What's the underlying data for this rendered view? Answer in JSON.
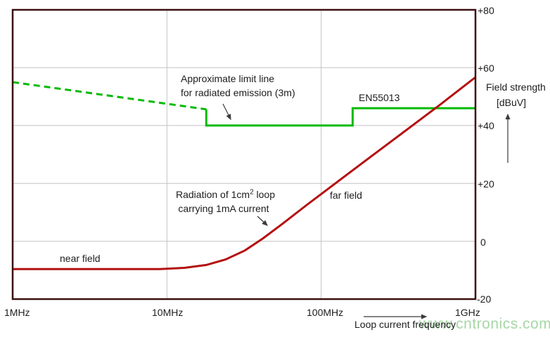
{
  "watermark": {
    "text": "www.cntronics.com",
    "color": "#a6d7a6"
  },
  "annotations": {
    "limit_line_label": {
      "line1": "Approximate limit line",
      "line2": "for radiated emission (3m)"
    },
    "en55013_label": "EN55013",
    "radiation_label": {
      "pre": "Radiation of 1cm",
      "sup": "2",
      "post": " loop",
      "line2": "carrying 1mA current"
    },
    "far_field_label": "far field",
    "near_field_label": "near field",
    "y_axis_title_line1": "Field strength",
    "y_axis_title_line2": "[dBuV]",
    "x_axis_title": "Loop current frequency"
  },
  "colors": {
    "limit_green": "#00bb00",
    "curve_red": "#b40f0f",
    "plot_border": "#3a0f0f",
    "gridline": "#c4c4c4",
    "arrow": "#3a3a3a",
    "text": "#1c1c1c"
  },
  "chart_data": {
    "type": "line",
    "title": "",
    "xlabel": "Loop current frequency",
    "ylabel": "Field strength [dBuV]",
    "x_axis": {
      "scale": "log",
      "min": 1000000.0,
      "max": 1000000000.0,
      "tick_labels": [
        "1MHz",
        "10MHz",
        "100MHz",
        "1GHz"
      ],
      "tick_values": [
        1000000.0,
        10000000.0,
        100000000.0,
        1000000000.0
      ]
    },
    "y_axis": {
      "min": -20,
      "max": 80,
      "tick_labels": [
        "+80",
        "+60",
        "+40",
        "+20",
        "0",
        "-20"
      ],
      "tick_values": [
        80,
        60,
        40,
        20,
        0,
        -20
      ]
    },
    "grid": {
      "x_values": [
        10000000.0,
        100000000.0
      ],
      "y_values": [
        60,
        40,
        20,
        0
      ]
    },
    "series": [
      {
        "key": "limit-extrapolated-dashed",
        "name": "Approximate limit line extrapolated below 30MHz (dashed)",
        "color": "#00bb00",
        "style": "dashed",
        "width": 3,
        "points": [
          [
            1000000.0,
            55
          ],
          [
            18000000.0,
            45.6
          ]
        ]
      },
      {
        "key": "limit-en55013-solid",
        "name": "EN55013 approximate limit line for radiated emission (3m)",
        "color": "#00bb00",
        "style": "solid",
        "width": 3,
        "points": [
          [
            18000000.0,
            45.6
          ],
          [
            18000000.0,
            40
          ],
          [
            160000000.0,
            40
          ],
          [
            160000000.0,
            46
          ],
          [
            1000000000.0,
            46
          ]
        ]
      },
      {
        "key": "loop-radiation",
        "name": "Radiation of 1cm2 loop carrying 1mA current",
        "color": "#b40f0f",
        "style": "solid",
        "width": 3,
        "points": [
          [
            1000000.0,
            -9.6
          ],
          [
            9000000.0,
            -9.6
          ],
          [
            13000000.0,
            -9.2
          ],
          [
            18000000.0,
            -8.2
          ],
          [
            24000000.0,
            -6.3
          ],
          [
            32000000.0,
            -3.2
          ],
          [
            42000000.0,
            1.0
          ],
          [
            56000000.0,
            6.0
          ],
          [
            80000000.0,
            12.4
          ],
          [
            120000000.0,
            19.5
          ],
          [
            200000000.0,
            28.4
          ],
          [
            350000000.0,
            38.1
          ],
          [
            600000000.0,
            47.5
          ],
          [
            1000000000.0,
            56.7
          ]
        ]
      }
    ],
    "regions": {
      "near_field": "flat at about -10 dBuV below ~20MHz",
      "far_field": "rises ~40 dB/decade above ~20MHz up to ~+57 dBuV at 1GHz"
    }
  }
}
